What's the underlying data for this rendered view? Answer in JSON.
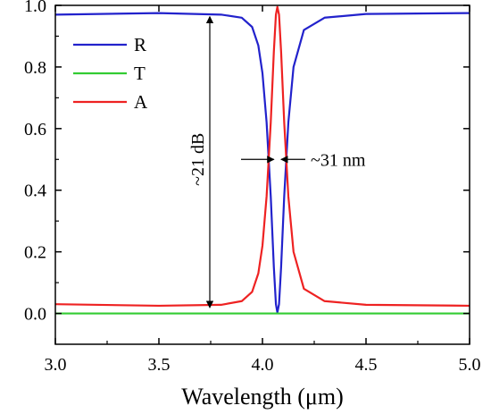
{
  "chart_data": {
    "type": "line",
    "xlabel": "Wavelength (μm)",
    "ylabel": "",
    "xlim": [
      3.0,
      5.0
    ],
    "ylim": [
      -0.1,
      1.0
    ],
    "x_ticks": [
      "3.0",
      "3.5",
      "4.0",
      "4.5",
      "5.0"
    ],
    "y_ticks": [
      "0.0",
      "0.2",
      "0.4",
      "0.6",
      "0.8",
      "1.0"
    ],
    "grid": false,
    "legend_position": "top-left",
    "series": [
      {
        "name": "R",
        "color": "#2222cc",
        "points": [
          [
            3.0,
            0.97
          ],
          [
            3.5,
            0.975
          ],
          [
            3.8,
            0.97
          ],
          [
            3.9,
            0.96
          ],
          [
            3.95,
            0.93
          ],
          [
            3.98,
            0.87
          ],
          [
            4.0,
            0.78
          ],
          [
            4.02,
            0.62
          ],
          [
            4.04,
            0.38
          ],
          [
            4.055,
            0.15
          ],
          [
            4.065,
            0.03
          ],
          [
            4.072,
            0.003
          ],
          [
            4.08,
            0.03
          ],
          [
            4.09,
            0.15
          ],
          [
            4.105,
            0.38
          ],
          [
            4.125,
            0.62
          ],
          [
            4.15,
            0.8
          ],
          [
            4.2,
            0.92
          ],
          [
            4.3,
            0.96
          ],
          [
            4.5,
            0.972
          ],
          [
            5.0,
            0.975
          ]
        ]
      },
      {
        "name": "T",
        "color": "#33cc33",
        "points": [
          [
            3.0,
            0.0
          ],
          [
            5.0,
            0.0
          ]
        ]
      },
      {
        "name": "A",
        "color": "#ee2222",
        "points": [
          [
            3.0,
            0.03
          ],
          [
            3.5,
            0.025
          ],
          [
            3.8,
            0.028
          ],
          [
            3.9,
            0.04
          ],
          [
            3.95,
            0.07
          ],
          [
            3.98,
            0.13
          ],
          [
            4.0,
            0.22
          ],
          [
            4.02,
            0.38
          ],
          [
            4.04,
            0.62
          ],
          [
            4.055,
            0.85
          ],
          [
            4.065,
            0.97
          ],
          [
            4.072,
            0.995
          ],
          [
            4.08,
            0.97
          ],
          [
            4.09,
            0.85
          ],
          [
            4.105,
            0.62
          ],
          [
            4.125,
            0.38
          ],
          [
            4.15,
            0.2
          ],
          [
            4.2,
            0.08
          ],
          [
            4.3,
            0.04
          ],
          [
            4.5,
            0.028
          ],
          [
            5.0,
            0.025
          ]
        ]
      }
    ],
    "annotations": {
      "depth_label": "~21 dB",
      "width_label": "~31 nm"
    }
  }
}
